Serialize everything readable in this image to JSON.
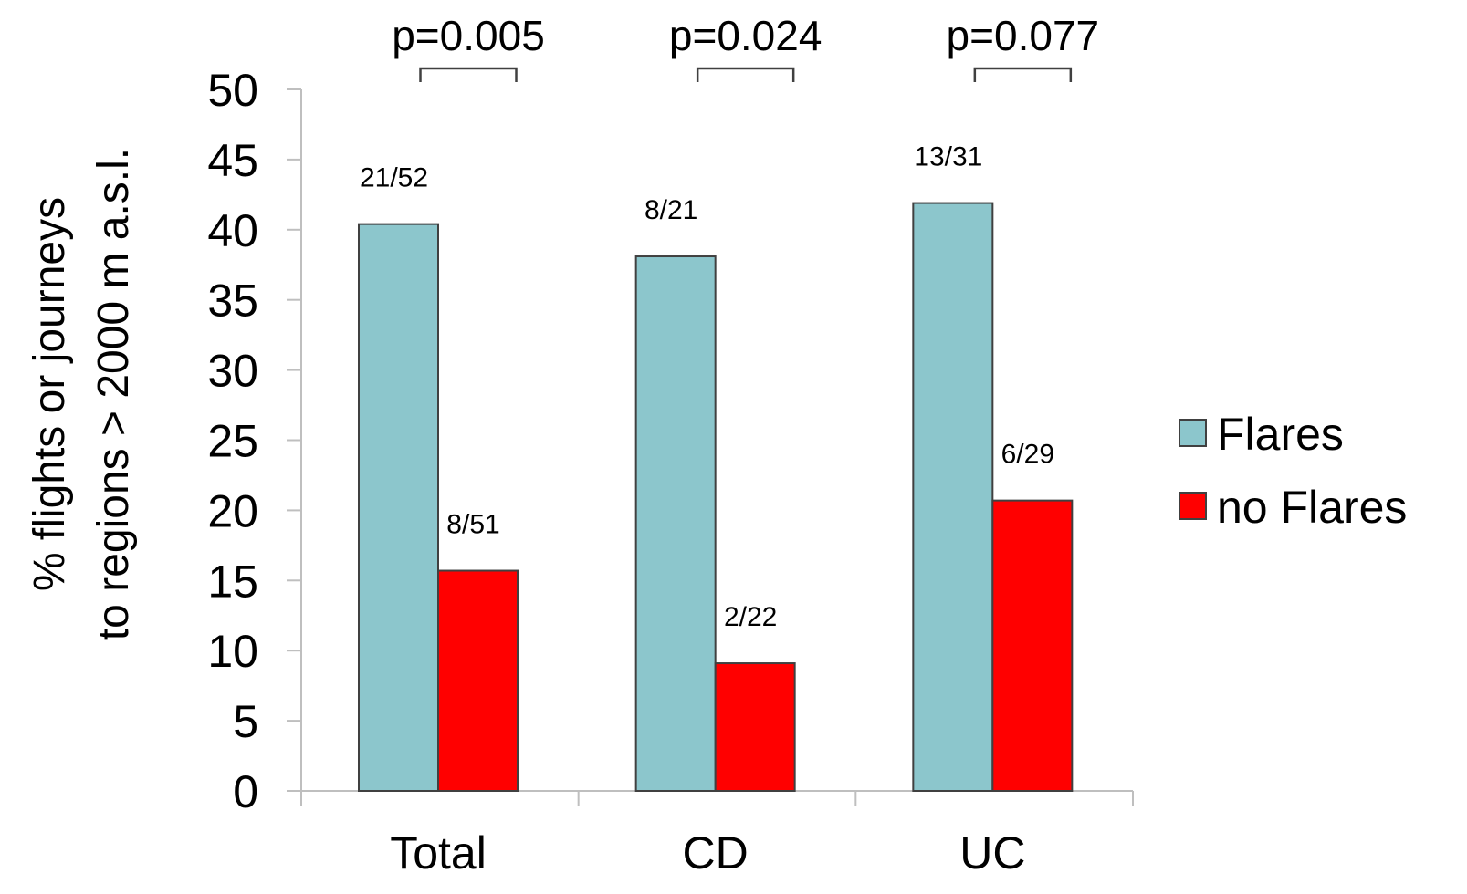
{
  "chart_data": {
    "type": "bar",
    "categories": [
      "Total",
      "CD",
      "UC"
    ],
    "series": [
      {
        "name": "Flares",
        "values": [
          40.4,
          38.1,
          41.9
        ],
        "data_labels": [
          "21/52",
          "8/21",
          "13/31"
        ],
        "color": "#8cc6cc"
      },
      {
        "name": "no Flares",
        "values": [
          15.7,
          9.1,
          20.7
        ],
        "data_labels": [
          "8/51",
          "2/22",
          "6/29"
        ],
        "color": "#ff0000"
      }
    ],
    "p_values": [
      "p=0.005",
      "p=0.024",
      "p=0.077"
    ],
    "ylabel_lines": [
      "% flights or journeys",
      "to regions > 2000 m a.s.l."
    ],
    "ylim": [
      0,
      50
    ],
    "yticks": [
      0,
      5,
      10,
      15,
      20,
      25,
      30,
      35,
      40,
      45,
      50
    ],
    "grid": false,
    "legend_position": "right",
    "axis_color": "#bfbfbf"
  }
}
